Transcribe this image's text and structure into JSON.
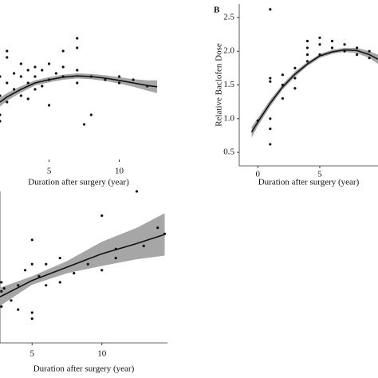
{
  "chart_data": [
    {
      "type": "scatter",
      "x_label": "Duration after surgery (year)",
      "xlim": [
        1.5,
        12.7
      ],
      "ylim": [
        0,
        2.5
      ],
      "xticks": [
        5,
        10
      ],
      "points": {
        "x": [
          1.5,
          1.5,
          1.5,
          1.5,
          2,
          2,
          2,
          2,
          2.5,
          2.5,
          3,
          3,
          3,
          3.5,
          3.5,
          3.5,
          4,
          4,
          4,
          4.5,
          4.5,
          5,
          5,
          5,
          5.5,
          6,
          6,
          6,
          7,
          7,
          7,
          7,
          7.5,
          8,
          8,
          9,
          10,
          10,
          11,
          12
        ],
        "y": [
          1.0,
          0.7,
          0.6,
          1.3,
          1.6,
          1.7,
          0.9,
          1.2,
          1.1,
          1.35,
          1.5,
          1.3,
          1.0,
          1.2,
          1.4,
          0.95,
          1.3,
          1.1,
          1.45,
          1.15,
          1.4,
          1.25,
          1.5,
          0.85,
          1.35,
          1.3,
          1.7,
          1.45,
          1.75,
          1.9,
          1.4,
          1.2,
          0.55,
          1.3,
          0.7,
          1.25,
          1.3,
          1.2,
          1.25,
          1.15
        ]
      },
      "fit": {
        "x": [
          1.5,
          2,
          3,
          4,
          5,
          6,
          7,
          8,
          9,
          10,
          11,
          12,
          12.7
        ],
        "y": [
          0.9,
          0.98,
          1.1,
          1.2,
          1.25,
          1.29,
          1.31,
          1.3,
          1.275,
          1.24,
          1.2,
          1.16,
          1.14
        ],
        "lower": [
          0.83,
          0.92,
          1.05,
          1.16,
          1.21,
          1.25,
          1.27,
          1.26,
          1.23,
          1.19,
          1.14,
          1.08,
          1.04
        ],
        "upper": [
          0.97,
          1.04,
          1.15,
          1.24,
          1.29,
          1.33,
          1.35,
          1.34,
          1.32,
          1.29,
          1.26,
          1.24,
          1.24
        ]
      }
    },
    {
      "type": "scatter",
      "title": "B",
      "x_label": "Duration after surgery (year)",
      "y_label": "Relative Baclofen Dose",
      "xlim": [
        -1.5,
        9.7
      ],
      "ylim": [
        0.3,
        2.7
      ],
      "xticks": [
        0,
        5
      ],
      "yticks": [
        0.5,
        {
          "value": 1.0,
          "label": "1.0"
        },
        1.5,
        {
          "value": 2.0,
          "label": "2.0"
        },
        2.5
      ],
      "points": {
        "x": [
          0,
          1,
          1,
          1,
          1,
          1,
          1,
          2,
          2,
          2,
          3,
          3,
          3,
          4,
          4,
          4,
          4,
          5,
          5,
          5,
          6,
          6,
          7,
          7,
          8,
          8,
          9,
          9
        ],
        "y": [
          0.97,
          2.62,
          0.62,
          1.6,
          1.55,
          1.0,
          0.85,
          1.65,
          1.5,
          1.3,
          1.75,
          1.45,
          1.6,
          2.15,
          2.05,
          1.85,
          1.95,
          2.2,
          2.1,
          1.95,
          2.15,
          2.05,
          2.1,
          2.0,
          2.05,
          1.95,
          2.0,
          1.9
        ]
      },
      "fit": {
        "x": [
          -0.5,
          0,
          1,
          2,
          3,
          4,
          5,
          6,
          7,
          8,
          9,
          9.7
        ],
        "y": [
          0.8,
          0.95,
          1.23,
          1.47,
          1.66,
          1.81,
          1.93,
          1.99,
          2.02,
          2.01,
          1.95,
          1.88
        ],
        "lower": [
          0.72,
          0.89,
          1.18,
          1.43,
          1.62,
          1.78,
          1.9,
          1.96,
          1.99,
          1.97,
          1.9,
          1.81
        ],
        "upper": [
          0.88,
          1.01,
          1.28,
          1.51,
          1.7,
          1.84,
          1.96,
          2.02,
          2.05,
          2.05,
          2.0,
          1.95
        ]
      }
    },
    {
      "type": "scatter",
      "x_label": "Duration after surgery (year)",
      "xlim": [
        2.7,
        14.7
      ],
      "ylim": [
        0,
        2.5
      ],
      "xticks": [
        5,
        10
      ],
      "points": {
        "x": [
          2.8,
          2.8,
          2.8,
          3,
          3.5,
          4,
          4,
          4.5,
          5,
          5,
          5,
          5,
          5.5,
          6,
          6,
          7,
          7,
          8,
          9,
          10,
          10,
          11,
          11,
          12.5,
          13,
          14,
          14.5
        ],
        "y": [
          1.0,
          0.85,
          0.6,
          0.9,
          0.7,
          0.95,
          0.55,
          1.2,
          1.7,
          1.3,
          0.5,
          0.4,
          1.1,
          1.3,
          0.95,
          1.4,
          1.0,
          1.15,
          1.3,
          1.2,
          2.1,
          1.55,
          1.4,
          2.5,
          1.6,
          1.9,
          1.8
        ]
      },
      "fit": {
        "x": [
          2.7,
          5,
          7.5,
          10,
          12.5,
          14.5
        ],
        "y": [
          0.76,
          1.03,
          1.25,
          1.47,
          1.64,
          1.79
        ],
        "lower": [
          0.61,
          0.96,
          1.15,
          1.27,
          1.38,
          1.44
        ],
        "upper": [
          0.91,
          1.1,
          1.35,
          1.67,
          1.9,
          2.14
        ]
      }
    }
  ]
}
